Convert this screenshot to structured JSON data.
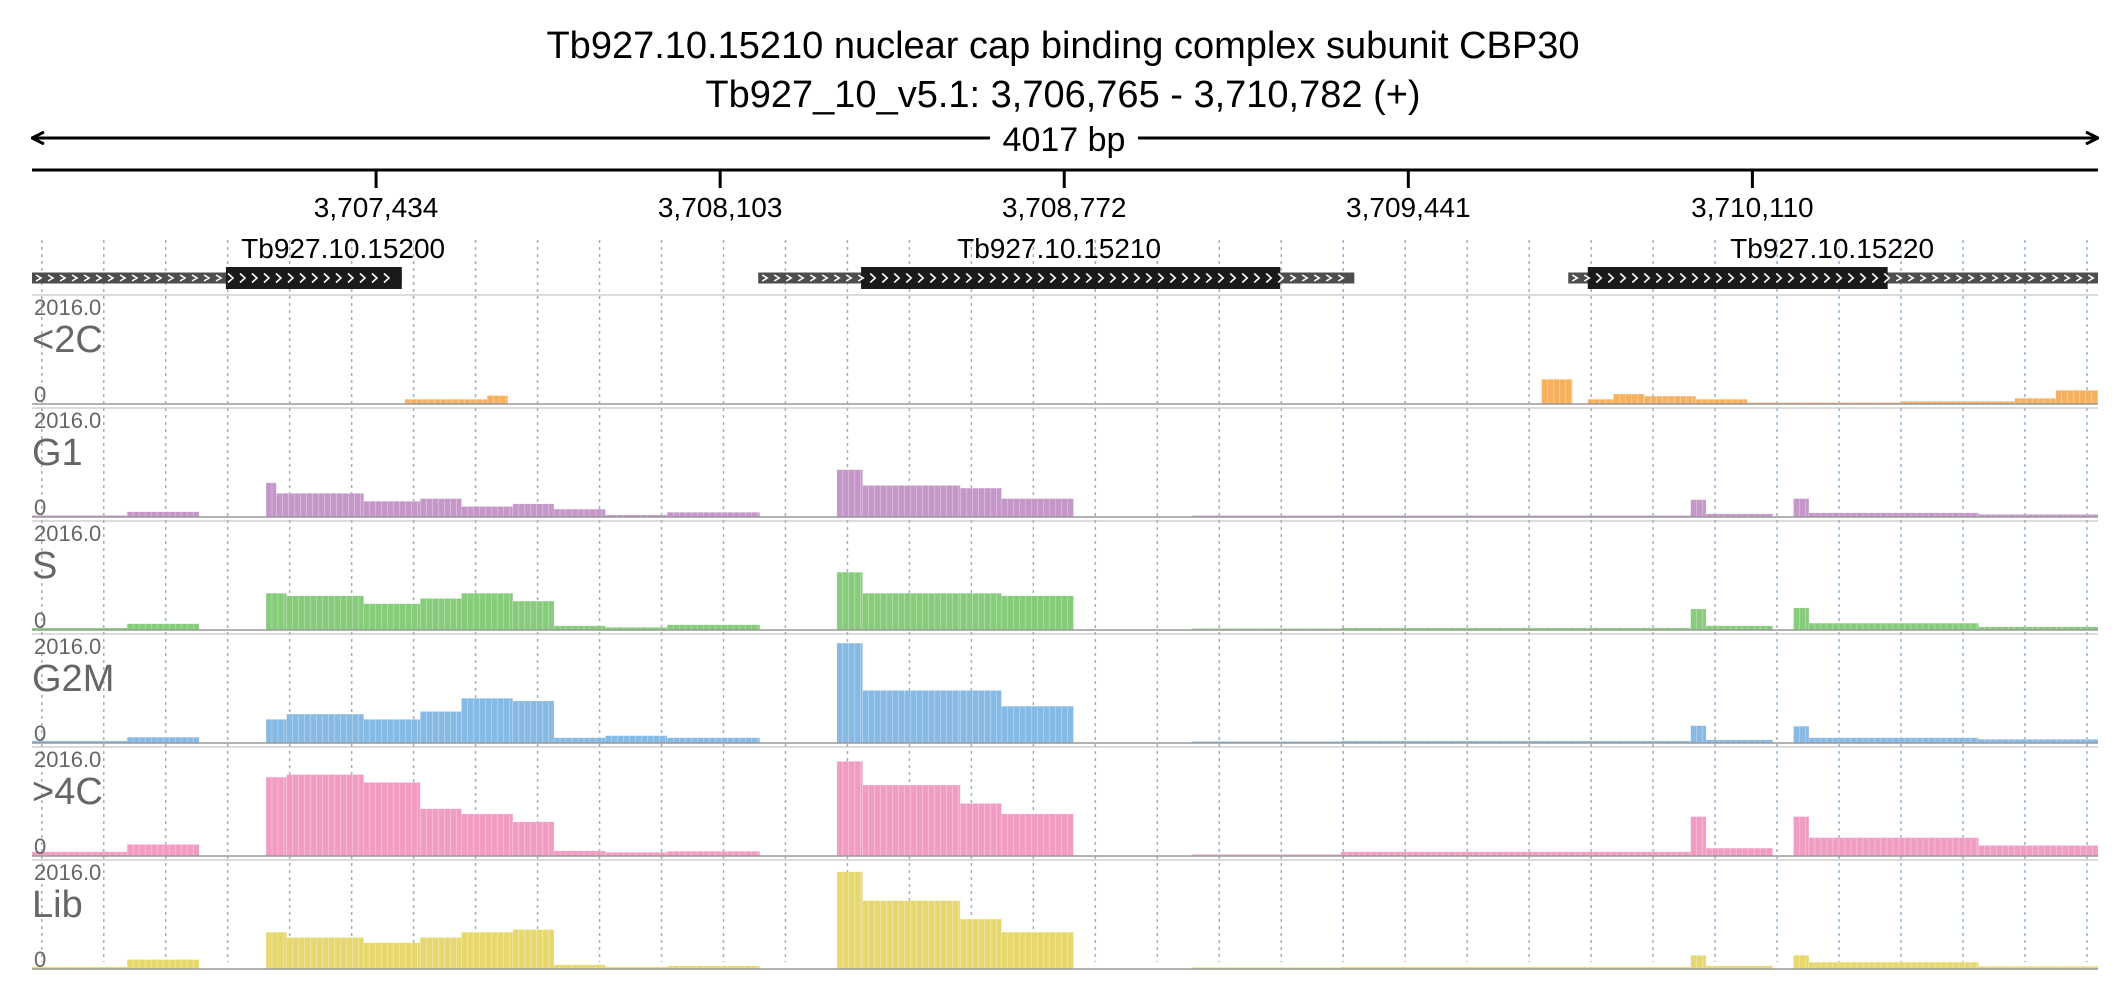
{
  "header": {
    "title_line1": "Tb927.10.15210  nuclear cap binding complex subunit CBP30",
    "title_line2": "Tb927_10_v5.1: 3,706,765 - 3,710,782 (+)",
    "span_label": "4017 bp"
  },
  "colors": {
    "text": "#000000",
    "track_label": "#666666",
    "grid": "#8db3d9",
    "gene_cds": "#1a1a1a",
    "gene_utr": "#4d4d4d",
    "track_baseline": "#999999"
  },
  "chart_data": {
    "type": "bar",
    "title": "Tb927.10.15210  nuclear cap binding complex subunit CBP30",
    "subtitle": "Tb927_10_v5.1: 3,706,765 - 3,710,782 (+)",
    "xlim": [
      3706765,
      3710782
    ],
    "ylim": [
      0,
      2016.0
    ],
    "x_ticks": [
      {
        "value": 3707434,
        "label": "3,707,434"
      },
      {
        "value": 3708103,
        "label": "3,708,103"
      },
      {
        "value": 3708772,
        "label": "3,708,772"
      },
      {
        "value": 3709441,
        "label": "3,709,441"
      },
      {
        "value": 3710110,
        "label": "3,710,110"
      }
    ],
    "genes": [
      {
        "name": "Tb927.10.15200",
        "start": 3706765,
        "end": 3707484,
        "cds_start": 3707142,
        "cds_end": 3707484,
        "label_x": 3707370
      },
      {
        "name": "Tb927.10.15210",
        "start": 3708177,
        "end": 3709336,
        "cds_start": 3708377,
        "cds_end": 3709192,
        "label_x": 3708762
      },
      {
        "name": "Tb927.10.15220",
        "start": 3709752,
        "end": 3710782,
        "cds_start": 3709790,
        "cds_end": 3710373,
        "label_x": 3710265
      }
    ],
    "tracks": [
      {
        "name": "<2C",
        "color": "#f5b060",
        "ymax_label": "2016.0",
        "ymin_label": "0",
        "segments": [
          [
            3707490,
            3707650,
            90
          ],
          [
            3707650,
            3707690,
            160
          ],
          [
            3709700,
            3709760,
            470
          ],
          [
            3709790,
            3709840,
            90
          ],
          [
            3709840,
            3709900,
            190
          ],
          [
            3709900,
            3710000,
            150
          ],
          [
            3710000,
            3710100,
            90
          ],
          [
            3710100,
            3710400,
            15
          ],
          [
            3710400,
            3710620,
            50
          ],
          [
            3710620,
            3710700,
            110
          ],
          [
            3710700,
            3710782,
            260
          ]
        ]
      },
      {
        "name": "G1",
        "color": "#c497c8",
        "ymax_label": "2016.0",
        "ymin_label": "0",
        "segments": [
          [
            3706765,
            3706950,
            30
          ],
          [
            3706950,
            3707090,
            100
          ],
          [
            3707220,
            3707240,
            650
          ],
          [
            3707240,
            3707410,
            450
          ],
          [
            3707410,
            3707520,
            300
          ],
          [
            3707520,
            3707600,
            350
          ],
          [
            3707600,
            3707700,
            200
          ],
          [
            3707700,
            3707780,
            250
          ],
          [
            3707780,
            3707880,
            150
          ],
          [
            3707880,
            3708000,
            40
          ],
          [
            3708000,
            3708180,
            90
          ],
          [
            3708330,
            3708380,
            900
          ],
          [
            3708380,
            3708570,
            600
          ],
          [
            3708570,
            3708650,
            550
          ],
          [
            3708650,
            3708790,
            350
          ],
          [
            3709020,
            3709310,
            15
          ],
          [
            3709310,
            3709990,
            20
          ],
          [
            3709990,
            3710020,
            330
          ],
          [
            3710020,
            3710150,
            60
          ],
          [
            3710190,
            3710220,
            350
          ],
          [
            3710220,
            3710550,
            80
          ],
          [
            3710550,
            3710782,
            50
          ]
        ]
      },
      {
        "name": "S",
        "color": "#86cc7b",
        "ymax_label": "2016.0",
        "ymin_label": "0",
        "segments": [
          [
            3706765,
            3706950,
            40
          ],
          [
            3706950,
            3707090,
            120
          ],
          [
            3707220,
            3707260,
            700
          ],
          [
            3707260,
            3707410,
            650
          ],
          [
            3707410,
            3707520,
            500
          ],
          [
            3707520,
            3707600,
            600
          ],
          [
            3707600,
            3707700,
            700
          ],
          [
            3707700,
            3707780,
            550
          ],
          [
            3707780,
            3707880,
            80
          ],
          [
            3707880,
            3708000,
            50
          ],
          [
            3708000,
            3708180,
            100
          ],
          [
            3708330,
            3708380,
            1100
          ],
          [
            3708380,
            3708570,
            700
          ],
          [
            3708570,
            3708650,
            700
          ],
          [
            3708650,
            3708790,
            650
          ],
          [
            3709020,
            3709310,
            20
          ],
          [
            3709310,
            3709990,
            40
          ],
          [
            3709990,
            3710020,
            400
          ],
          [
            3710020,
            3710150,
            80
          ],
          [
            3710190,
            3710220,
            420
          ],
          [
            3710220,
            3710550,
            130
          ],
          [
            3710550,
            3710782,
            60
          ]
        ]
      },
      {
        "name": "G2M",
        "color": "#86b9e4",
        "ymax_label": "2016.0",
        "ymin_label": "0",
        "segments": [
          [
            3706765,
            3706950,
            40
          ],
          [
            3706950,
            3707090,
            110
          ],
          [
            3707220,
            3707260,
            450
          ],
          [
            3707260,
            3707410,
            550
          ],
          [
            3707410,
            3707520,
            450
          ],
          [
            3707520,
            3707600,
            600
          ],
          [
            3707600,
            3707700,
            850
          ],
          [
            3707700,
            3707780,
            800
          ],
          [
            3707780,
            3707880,
            100
          ],
          [
            3707880,
            3708000,
            140
          ],
          [
            3708000,
            3708180,
            100
          ],
          [
            3708330,
            3708380,
            1900
          ],
          [
            3708380,
            3708570,
            1000
          ],
          [
            3708570,
            3708650,
            1000
          ],
          [
            3708650,
            3708790,
            700
          ],
          [
            3709020,
            3709310,
            30
          ],
          [
            3709310,
            3709990,
            40
          ],
          [
            3709990,
            3710020,
            330
          ],
          [
            3710020,
            3710150,
            60
          ],
          [
            3710190,
            3710220,
            320
          ],
          [
            3710220,
            3710550,
            100
          ],
          [
            3710550,
            3710782,
            70
          ]
        ]
      },
      {
        "name": ">4C",
        "color": "#f29cc4",
        "ymax_label": "2016.0",
        "ymin_label": "0",
        "segments": [
          [
            3706765,
            3706950,
            80
          ],
          [
            3706950,
            3707090,
            220
          ],
          [
            3707220,
            3707260,
            1500
          ],
          [
            3707260,
            3707410,
            1550
          ],
          [
            3707410,
            3707520,
            1400
          ],
          [
            3707520,
            3707600,
            900
          ],
          [
            3707600,
            3707700,
            800
          ],
          [
            3707700,
            3707780,
            650
          ],
          [
            3707780,
            3707880,
            100
          ],
          [
            3707880,
            3708000,
            70
          ],
          [
            3708000,
            3708180,
            90
          ],
          [
            3708330,
            3708380,
            1800
          ],
          [
            3708380,
            3708570,
            1350
          ],
          [
            3708570,
            3708650,
            1000
          ],
          [
            3708650,
            3708790,
            800
          ],
          [
            3709020,
            3709310,
            30
          ],
          [
            3709310,
            3709990,
            80
          ],
          [
            3709990,
            3710020,
            750
          ],
          [
            3710020,
            3710150,
            150
          ],
          [
            3710190,
            3710220,
            750
          ],
          [
            3710220,
            3710550,
            350
          ],
          [
            3710550,
            3710782,
            200
          ]
        ]
      },
      {
        "name": "Lib",
        "color": "#e7d86e",
        "ymax_label": "2016.0",
        "ymin_label": "0",
        "segments": [
          [
            3706765,
            3706950,
            40
          ],
          [
            3706950,
            3707090,
            180
          ],
          [
            3707220,
            3707260,
            700
          ],
          [
            3707260,
            3707410,
            600
          ],
          [
            3707410,
            3707520,
            500
          ],
          [
            3707520,
            3707600,
            600
          ],
          [
            3707600,
            3707700,
            700
          ],
          [
            3707700,
            3707780,
            750
          ],
          [
            3707780,
            3707880,
            80
          ],
          [
            3707880,
            3708000,
            40
          ],
          [
            3708000,
            3708180,
            60
          ],
          [
            3708330,
            3708380,
            1850
          ],
          [
            3708380,
            3708570,
            1300
          ],
          [
            3708570,
            3708650,
            950
          ],
          [
            3708650,
            3708790,
            700
          ],
          [
            3709020,
            3709310,
            30
          ],
          [
            3709310,
            3709990,
            40
          ],
          [
            3709990,
            3710020,
            260
          ],
          [
            3710020,
            3710150,
            60
          ],
          [
            3710190,
            3710220,
            260
          ],
          [
            3710220,
            3710550,
            130
          ],
          [
            3710550,
            3710782,
            50
          ]
        ]
      }
    ]
  }
}
